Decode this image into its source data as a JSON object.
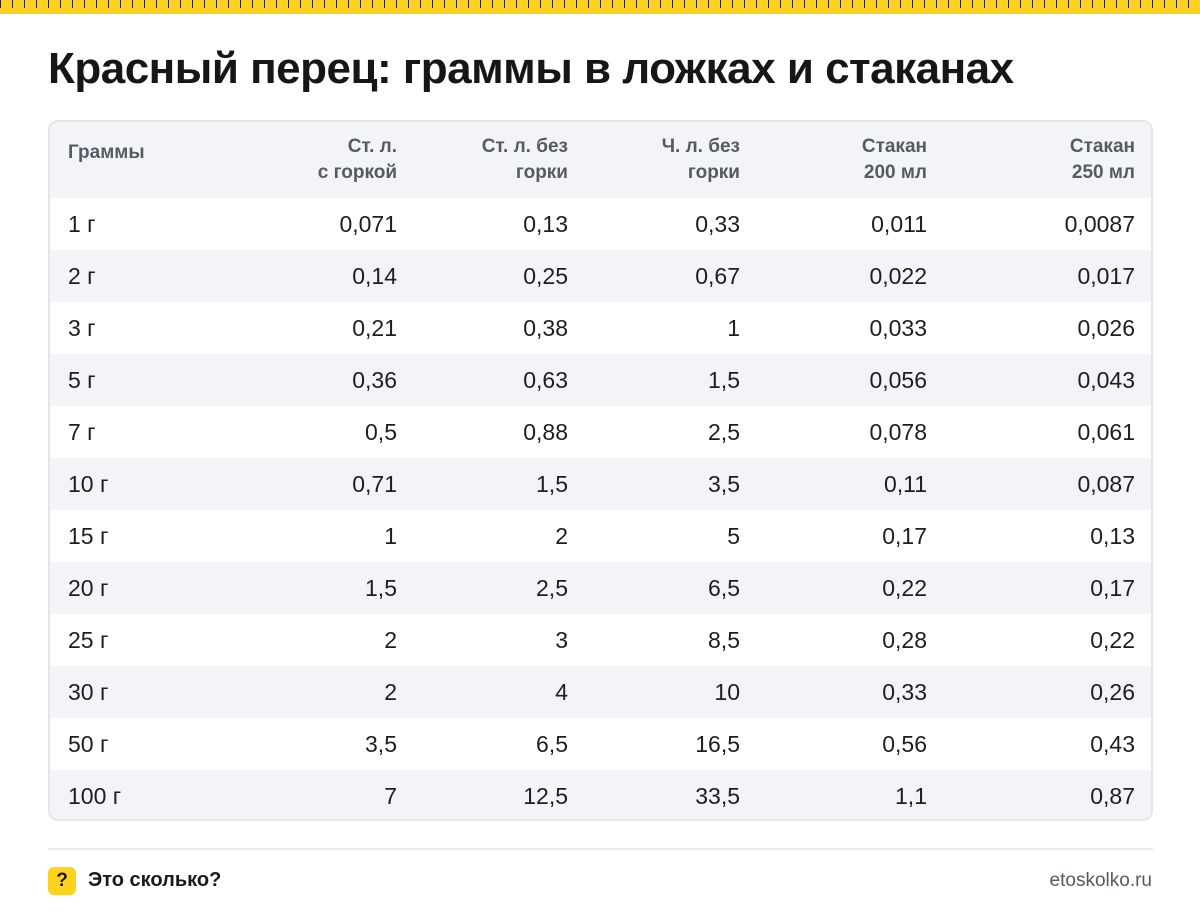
{
  "title": "Красный перец: граммы в ложках и стаканах",
  "table": {
    "headers": [
      "Граммы",
      "Ст. л.\nс горкой",
      "Ст. л. без\nгорки",
      "Ч. л. без\nгорки",
      "Стакан\n200 мл",
      "Стакан\n250 мл"
    ],
    "rows": [
      [
        "1 г",
        "0,071",
        "0,13",
        "0,33",
        "0,011",
        "0,0087"
      ],
      [
        "2 г",
        "0,14",
        "0,25",
        "0,67",
        "0,022",
        "0,017"
      ],
      [
        "3 г",
        "0,21",
        "0,38",
        "1",
        "0,033",
        "0,026"
      ],
      [
        "5 г",
        "0,36",
        "0,63",
        "1,5",
        "0,056",
        "0,043"
      ],
      [
        "7 г",
        "0,5",
        "0,88",
        "2,5",
        "0,078",
        "0,061"
      ],
      [
        "10 г",
        "0,71",
        "1,5",
        "3,5",
        "0,11",
        "0,087"
      ],
      [
        "15 г",
        "1",
        "2",
        "5",
        "0,17",
        "0,13"
      ],
      [
        "20 г",
        "1,5",
        "2,5",
        "6,5",
        "0,22",
        "0,17"
      ],
      [
        "25 г",
        "2",
        "3",
        "8,5",
        "0,28",
        "0,22"
      ],
      [
        "30 г",
        "2",
        "4",
        "10",
        "0,33",
        "0,26"
      ],
      [
        "50 г",
        "3,5",
        "6,5",
        "16,5",
        "0,56",
        "0,43"
      ],
      [
        "100 г",
        "7",
        "12,5",
        "33,5",
        "1,1",
        "0,87"
      ]
    ]
  },
  "footer": {
    "badge": "?",
    "brand": "Это сколько?",
    "site": "etoskolko.ru"
  },
  "colors": {
    "accent": "#ffd21f",
    "header_bg": "#f2f4f7",
    "stripe_bg": "#f2f4f7"
  }
}
